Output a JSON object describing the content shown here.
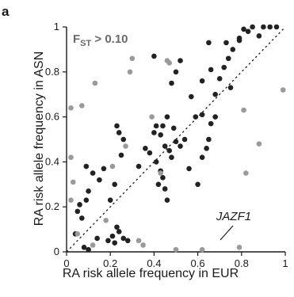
{
  "panel_label": "a",
  "chart_data": {
    "type": "scatter",
    "xlabel": "RA risk allele frequency in EUR",
    "ylabel": "RA risk allele frequency in ASN",
    "xlim": [
      0,
      1
    ],
    "ylim": [
      0,
      1
    ],
    "xticks": [
      "0",
      "0.2",
      "0.4",
      "0.6",
      "0.8",
      "1"
    ],
    "yticks": [
      "0",
      "0.2",
      "0.4",
      "0.6",
      "0.8",
      "1"
    ],
    "reference_line": "y = x (dotted)",
    "annotation": {
      "text_main": "F",
      "text_sub": "ST",
      "text_rest": " > 0.10"
    },
    "callout": {
      "label": "JAZF1",
      "x": 0.79,
      "y": 0.02
    },
    "colors": {
      "low_fst": "#222222",
      "high_fst": "#9a9a9a"
    },
    "series": [
      {
        "group": "low_fst",
        "points": [
          [
            0.04,
            0.08
          ],
          [
            0.06,
            0.21
          ],
          [
            0.05,
            0.18
          ],
          [
            0.07,
            0.15
          ],
          [
            0.09,
            0.23
          ],
          [
            0.1,
            0.27
          ],
          [
            0.12,
            0.35
          ],
          [
            0.09,
            0.38
          ],
          [
            0.15,
            0.32
          ],
          [
            0.17,
            0.37
          ],
          [
            0.2,
            0.23
          ],
          [
            0.22,
            0.3
          ],
          [
            0.25,
            0.43
          ],
          [
            0.26,
            0.5
          ],
          [
            0.24,
            0.53
          ],
          [
            0.23,
            0.56
          ],
          [
            0.21,
            0.07
          ],
          [
            0.23,
            0.11
          ],
          [
            0.24,
            0.09
          ],
          [
            0.26,
            0.06
          ],
          [
            0.19,
            0.05
          ],
          [
            0.22,
            0.04
          ],
          [
            0.28,
            0.05
          ],
          [
            0.1,
            0.01
          ],
          [
            0.08,
            0.02
          ],
          [
            0.14,
            0.06
          ],
          [
            0.33,
            0.38
          ],
          [
            0.36,
            0.46
          ],
          [
            0.38,
            0.44
          ],
          [
            0.41,
            0.4
          ],
          [
            0.42,
            0.3
          ],
          [
            0.43,
            0.36
          ],
          [
            0.44,
            0.33
          ],
          [
            0.45,
            0.28
          ],
          [
            0.46,
            0.23
          ],
          [
            0.4,
            0.53
          ],
          [
            0.43,
            0.52
          ],
          [
            0.45,
            0.47
          ],
          [
            0.41,
            0.56
          ],
          [
            0.44,
            0.56
          ],
          [
            0.47,
            0.45
          ],
          [
            0.48,
            0.42
          ],
          [
            0.5,
            0.49
          ],
          [
            0.52,
            0.47
          ],
          [
            0.54,
            0.5
          ],
          [
            0.49,
            0.55
          ],
          [
            0.46,
            0.6
          ],
          [
            0.48,
            0.75
          ],
          [
            0.5,
            0.8
          ],
          [
            0.52,
            0.85
          ],
          [
            0.4,
            0.87
          ],
          [
            0.56,
            0.37
          ],
          [
            0.6,
            0.3
          ],
          [
            0.62,
            0.42
          ],
          [
            0.64,
            0.46
          ],
          [
            0.65,
            0.5
          ],
          [
            0.66,
            0.57
          ],
          [
            0.62,
            0.61
          ],
          [
            0.59,
            0.6
          ],
          [
            0.68,
            0.7
          ],
          [
            0.7,
            0.77
          ],
          [
            0.72,
            0.82
          ],
          [
            0.74,
            0.86
          ],
          [
            0.76,
            0.9
          ],
          [
            0.73,
            0.93
          ],
          [
            0.79,
            0.95
          ],
          [
            0.83,
            0.98
          ],
          [
            0.85,
            1.0
          ],
          [
            0.88,
            0.96
          ],
          [
            0.9,
            1.0
          ],
          [
            0.93,
            1.0
          ],
          [
            0.96,
            1.0
          ],
          [
            0.65,
            0.93
          ],
          [
            0.62,
            0.76
          ],
          [
            0.66,
            0.81
          ],
          [
            0.75,
            0.73
          ],
          [
            0.57,
            0.69
          ],
          [
            0.79,
            0.94
          ],
          [
            0.81,
            0.99
          ],
          [
            0.68,
            0.6
          ]
        ]
      },
      {
        "group": "high_fst",
        "points": [
          [
            0.02,
            0.23
          ],
          [
            0.03,
            0.31
          ],
          [
            0.02,
            0.42
          ],
          [
            0.02,
            0.64
          ],
          [
            0.07,
            0.65
          ],
          [
            0.13,
            0.75
          ],
          [
            0.29,
            0.8
          ],
          [
            0.3,
            0.86
          ],
          [
            0.46,
            0.85
          ],
          [
            0.47,
            0.84
          ],
          [
            0.39,
            0.6
          ],
          [
            0.21,
            0.38
          ],
          [
            0.05,
            0.08
          ],
          [
            0.35,
            0.03
          ],
          [
            0.33,
            0.05
          ],
          [
            0.18,
            0.14
          ],
          [
            0.5,
            0.01
          ],
          [
            0.62,
            0.01
          ],
          [
            0.82,
            0.35
          ],
          [
            0.88,
            0.48
          ],
          [
            0.81,
            0.63
          ],
          [
            0.99,
            0.72
          ],
          [
            0.79,
            0.02
          ],
          [
            0.43,
            0.35
          ],
          [
            0.27,
            0.47
          ],
          [
            0.12,
            0.03
          ]
        ]
      }
    ]
  }
}
